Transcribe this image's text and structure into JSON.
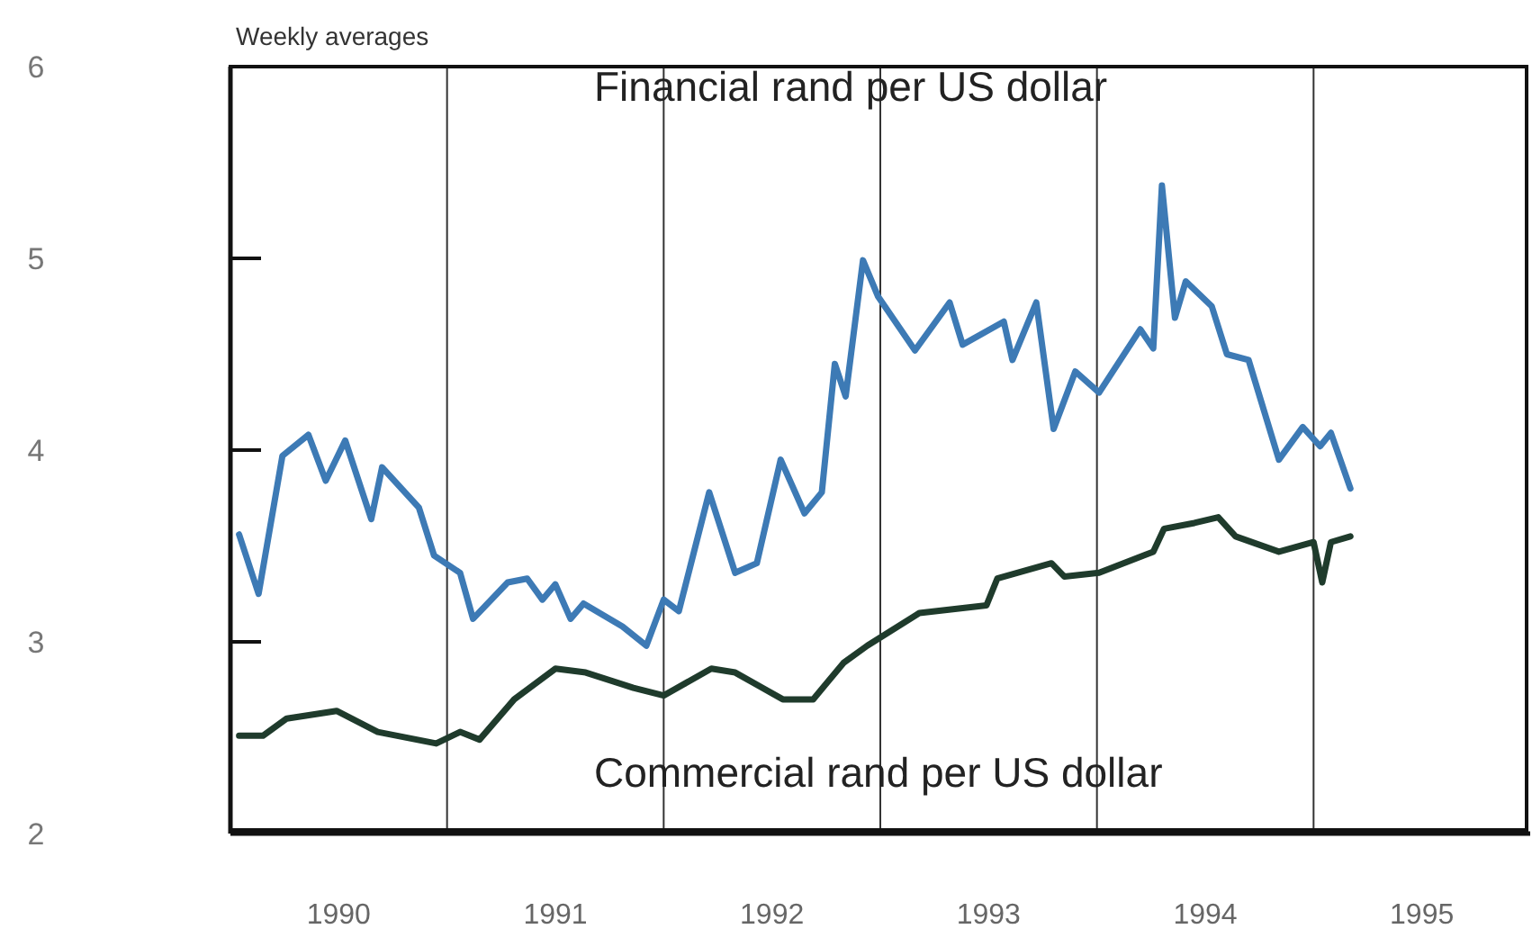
{
  "chart_data": {
    "type": "line",
    "subtitle": "Weekly averages",
    "xlim": [
      1990,
      1996
    ],
    "xticks": [
      {
        "value": 1990.5,
        "label": "1990"
      },
      {
        "value": 1991.5,
        "label": "1991"
      },
      {
        "value": 1992.5,
        "label": "1992"
      },
      {
        "value": 1993.5,
        "label": "1993"
      },
      {
        "value": 1994.5,
        "label": "1994"
      },
      {
        "value": 1995.5,
        "label": "1995"
      }
    ],
    "ylim": [
      2,
      6
    ],
    "yticks": [
      2,
      3,
      4,
      5,
      6
    ],
    "marker": "none",
    "line_style": "solid",
    "ref_lines": [
      {
        "axis": "x",
        "value": 1991
      },
      {
        "axis": "x",
        "value": 1992
      },
      {
        "axis": "x",
        "value": 1993
      },
      {
        "axis": "x",
        "value": 1994
      },
      {
        "axis": "x",
        "value": 1995
      }
    ],
    "series": [
      {
        "name": "Financial rand per US dollar",
        "color": "#3d7ab5",
        "x": [
          1990.04,
          1990.13,
          1990.24,
          1990.36,
          1990.44,
          1990.53,
          1990.65,
          1990.7,
          1990.87,
          1990.94,
          1991.06,
          1991.12,
          1991.28,
          1991.37,
          1991.44,
          1991.5,
          1991.57,
          1991.63,
          1991.81,
          1991.92,
          1992.0,
          1992.07,
          1992.21,
          1992.33,
          1992.43,
          1992.54,
          1992.65,
          1992.73,
          1992.79,
          1992.84,
          1992.92,
          1992.99,
          1993.16,
          1993.32,
          1993.38,
          1993.57,
          1993.61,
          1993.72,
          1993.8,
          1993.9,
          1994.01,
          1994.2,
          1994.26,
          1994.3,
          1994.36,
          1994.41,
          1994.53,
          1994.6,
          1994.7,
          1994.84,
          1994.95,
          1995.03,
          1995.08,
          1995.17
        ],
        "values": [
          3.56,
          3.25,
          3.97,
          4.08,
          3.84,
          4.05,
          3.64,
          3.91,
          3.7,
          3.45,
          3.36,
          3.12,
          3.31,
          3.33,
          3.22,
          3.3,
          3.12,
          3.2,
          3.08,
          2.98,
          3.22,
          3.16,
          3.78,
          3.36,
          3.41,
          3.95,
          3.67,
          3.78,
          4.45,
          4.28,
          4.99,
          4.8,
          4.52,
          4.77,
          4.55,
          4.67,
          4.47,
          4.77,
          4.11,
          4.41,
          4.3,
          4.63,
          4.53,
          5.38,
          4.69,
          4.88,
          4.75,
          4.5,
          4.47,
          3.95,
          4.12,
          4.02,
          4.09,
          3.8
        ]
      },
      {
        "name": "Commercial rand per US dollar",
        "color": "#1f3b2c",
        "x": [
          1990.04,
          1990.15,
          1990.26,
          1990.49,
          1990.68,
          1990.95,
          1991.06,
          1991.15,
          1991.31,
          1991.5,
          1991.64,
          1991.86,
          1992.0,
          1992.22,
          1992.33,
          1992.55,
          1992.69,
          1992.83,
          1992.94,
          1993.18,
          1993.49,
          1993.54,
          1993.79,
          1993.85,
          1994.01,
          1994.26,
          1994.31,
          1994.45,
          1994.56,
          1994.64,
          1994.84,
          1995.0,
          1995.04,
          1995.08,
          1995.17
        ],
        "values": [
          2.51,
          2.51,
          2.6,
          2.64,
          2.53,
          2.47,
          2.53,
          2.49,
          2.7,
          2.86,
          2.84,
          2.76,
          2.72,
          2.86,
          2.84,
          2.7,
          2.7,
          2.89,
          2.98,
          3.15,
          3.19,
          3.33,
          3.41,
          3.34,
          3.36,
          3.47,
          3.59,
          3.62,
          3.65,
          3.55,
          3.47,
          3.52,
          3.31,
          3.52,
          3.55
        ]
      }
    ]
  }
}
